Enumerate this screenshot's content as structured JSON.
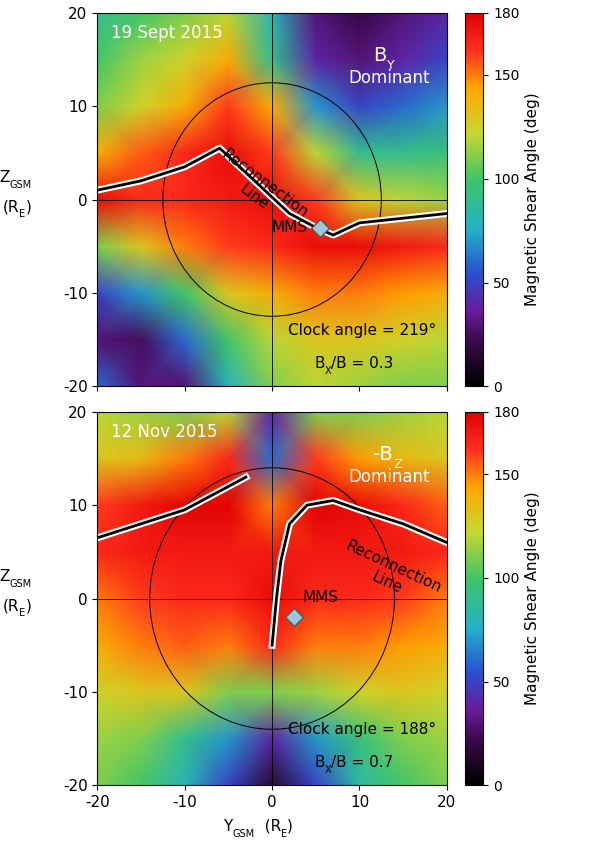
{
  "chart_data": [
    {
      "type": "heatmap",
      "date": "19 Sept 2015",
      "regime": [
        {
          "text": "B"
        },
        {
          "text": "Y",
          "sub": true
        }
      ],
      "regime_text": "Dominant",
      "clock_angle": "Clock angle = 219°",
      "bx_ratio": [
        {
          "text": "B"
        },
        {
          "text": "X",
          "sub": true
        },
        {
          "text": "/B = 0.3"
        }
      ],
      "line_label": "Reconnection\nLine",
      "mms": {
        "label": "MMS",
        "y": 5.5,
        "z": -3
      },
      "circle_radius": 12.5,
      "crosshair": 0,
      "reconnection_line": {
        "y": [
          -20,
          -15,
          -10,
          -6,
          -2,
          2,
          5,
          7,
          10,
          15,
          20
        ],
        "z": [
          1,
          2,
          3.5,
          5.5,
          2,
          -1.5,
          -3,
          -3.8,
          -2.5,
          -2,
          -1.5
        ]
      },
      "grid_y": [
        -20,
        -15,
        -10,
        -5,
        0,
        5,
        10,
        15,
        20
      ],
      "grid_z": [
        -20,
        -15,
        -10,
        -5,
        0,
        5,
        10,
        15,
        20
      ],
      "cells": [
        [
          60,
          30,
          30,
          80,
          110,
          120,
          115,
          110,
          110
        ],
        [
          30,
          25,
          60,
          100,
          120,
          130,
          130,
          125,
          120
        ],
        [
          50,
          70,
          100,
          130,
          140,
          150,
          150,
          145,
          140
        ],
        [
          110,
          130,
          150,
          160,
          165,
          175,
          175,
          170,
          165
        ],
        [
          175,
          165,
          165,
          170,
          175,
          160,
          130,
          120,
          115
        ],
        [
          140,
          155,
          165,
          175,
          160,
          120,
          90,
          90,
          95
        ],
        [
          110,
          125,
          140,
          160,
          140,
          70,
          50,
          60,
          70
        ],
        [
          100,
          115,
          125,
          140,
          90,
          40,
          30,
          40,
          50
        ],
        [
          90,
          100,
          110,
          120,
          80,
          30,
          20,
          30,
          40
        ]
      ],
      "xlim": [
        -20,
        20
      ],
      "ylim": [
        -20,
        20
      ],
      "xticks": [
        -20,
        -10,
        0,
        10,
        20
      ],
      "yticks": [
        -20,
        -10,
        0,
        10,
        20
      ],
      "tick_labels": "y",
      "ylabel": [
        [
          {
            "text": "Z"
          },
          {
            "text": "GSM",
            "sub": true
          }
        ],
        [
          {
            "text": "(R"
          },
          {
            "text": "E",
            "sub": true
          },
          {
            "text": ")"
          }
        ]
      ],
      "colorbar": {
        "label": "Magnetic Shear Angle (deg)",
        "range": [
          0,
          180
        ],
        "ticks": [
          0,
          50,
          100,
          150,
          180
        ]
      }
    },
    {
      "type": "heatmap",
      "date": "12 Nov 2015",
      "regime": [
        {
          "text": "-B"
        },
        {
          "text": "Z",
          "sub": true
        }
      ],
      "regime_text": "Dominant",
      "clock_angle": "Clock angle = 188°",
      "bx_ratio": [
        {
          "text": "B"
        },
        {
          "text": "X",
          "sub": true
        },
        {
          "text": "/B = 0.7"
        }
      ],
      "line_label": "Reconnection\nLine",
      "mms": {
        "label": "MMS",
        "y": 2.5,
        "z": -2
      },
      "circle_radius": 14,
      "crosshair": 0,
      "reconnection_line": {
        "y": [
          -20,
          -10,
          -3,
          -2,
          0,
          0.5,
          1,
          2,
          4,
          7,
          10,
          15,
          20
        ],
        "z": [
          6.5,
          9.5,
          13,
          null,
          -5,
          0,
          4,
          8,
          10,
          10.5,
          9.5,
          8,
          6
        ]
      },
      "grid_y": [
        -20,
        -15,
        -10,
        -5,
        0,
        5,
        10,
        15,
        20
      ],
      "grid_z": [
        -20,
        -15,
        -10,
        -5,
        0,
        5,
        10,
        15,
        20
      ],
      "cells": [
        [
          110,
          100,
          80,
          50,
          15,
          50,
          85,
          100,
          110
        ],
        [
          115,
          110,
          90,
          70,
          40,
          70,
          95,
          110,
          115
        ],
        [
          125,
          130,
          130,
          110,
          110,
          115,
          125,
          130,
          125
        ],
        [
          140,
          150,
          155,
          150,
          165,
          150,
          150,
          145,
          140
        ],
        [
          150,
          160,
          165,
          165,
          175,
          165,
          165,
          160,
          150
        ],
        [
          165,
          170,
          170,
          170,
          170,
          170,
          170,
          170,
          165
        ],
        [
          160,
          170,
          178,
          178,
          150,
          178,
          175,
          165,
          155
        ],
        [
          130,
          135,
          150,
          165,
          60,
          160,
          145,
          135,
          130
        ],
        [
          120,
          115,
          110,
          120,
          40,
          110,
          110,
          115,
          120
        ]
      ],
      "xlim": [
        -20,
        20
      ],
      "ylim": [
        -20,
        20
      ],
      "xticks": [
        -20,
        -10,
        0,
        10,
        20
      ],
      "yticks": [
        -20,
        -10,
        0,
        10,
        20
      ],
      "ylabel": [
        [
          {
            "text": "Z"
          },
          {
            "text": "GSM",
            "sub": true
          }
        ],
        [
          {
            "text": "(R"
          },
          {
            "text": "E",
            "sub": true
          },
          {
            "text": ")"
          }
        ]
      ],
      "xlabel": [
        {
          "text": "Y"
        },
        {
          "text": "GSM",
          "sub": true
        },
        {
          "text": "  (R"
        },
        {
          "text": "E",
          "sub": true
        },
        {
          "text": ")"
        }
      ],
      "colorbar": {
        "label": "Magnetic Shear Angle (deg)",
        "range": [
          0,
          180
        ],
        "ticks": [
          0,
          50,
          100,
          150,
          180
        ]
      }
    }
  ]
}
